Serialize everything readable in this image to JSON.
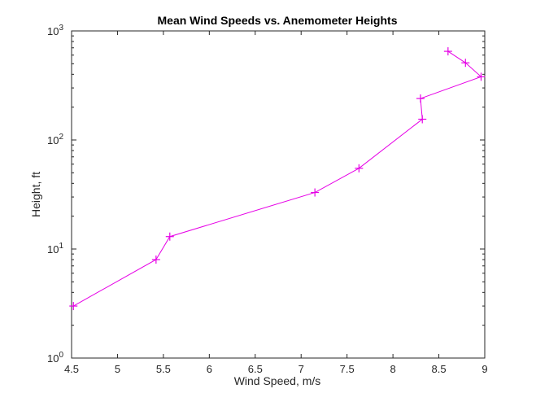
{
  "chart_data": {
    "type": "line",
    "title": "Mean Wind Speeds vs. Anemometer Heights",
    "xlabel": "Wind Speed, m/s",
    "ylabel": "Height, ft",
    "xlim": [
      4.5,
      9
    ],
    "ylim": [
      1,
      1000
    ],
    "yscale": "log",
    "grid": false,
    "legend": "none",
    "marker": "+",
    "line_color": "#e600e6",
    "xticks": [
      "4.5",
      "5",
      "5.5",
      "6",
      "6.5",
      "7",
      "7.5",
      "8",
      "8.5",
      "9"
    ],
    "yticks": [
      {
        "base": "10",
        "exp": "0"
      },
      {
        "base": "10",
        "exp": "1"
      },
      {
        "base": "10",
        "exp": "2"
      },
      {
        "base": "10",
        "exp": "3"
      }
    ],
    "series": [
      {
        "x": [
          4.52,
          5.42,
          5.57,
          7.15,
          7.63,
          8.32,
          8.3,
          8.96,
          8.79,
          8.6
        ],
        "y": [
          3,
          8,
          13,
          33,
          55,
          155,
          240,
          380,
          510,
          650
        ]
      }
    ]
  }
}
